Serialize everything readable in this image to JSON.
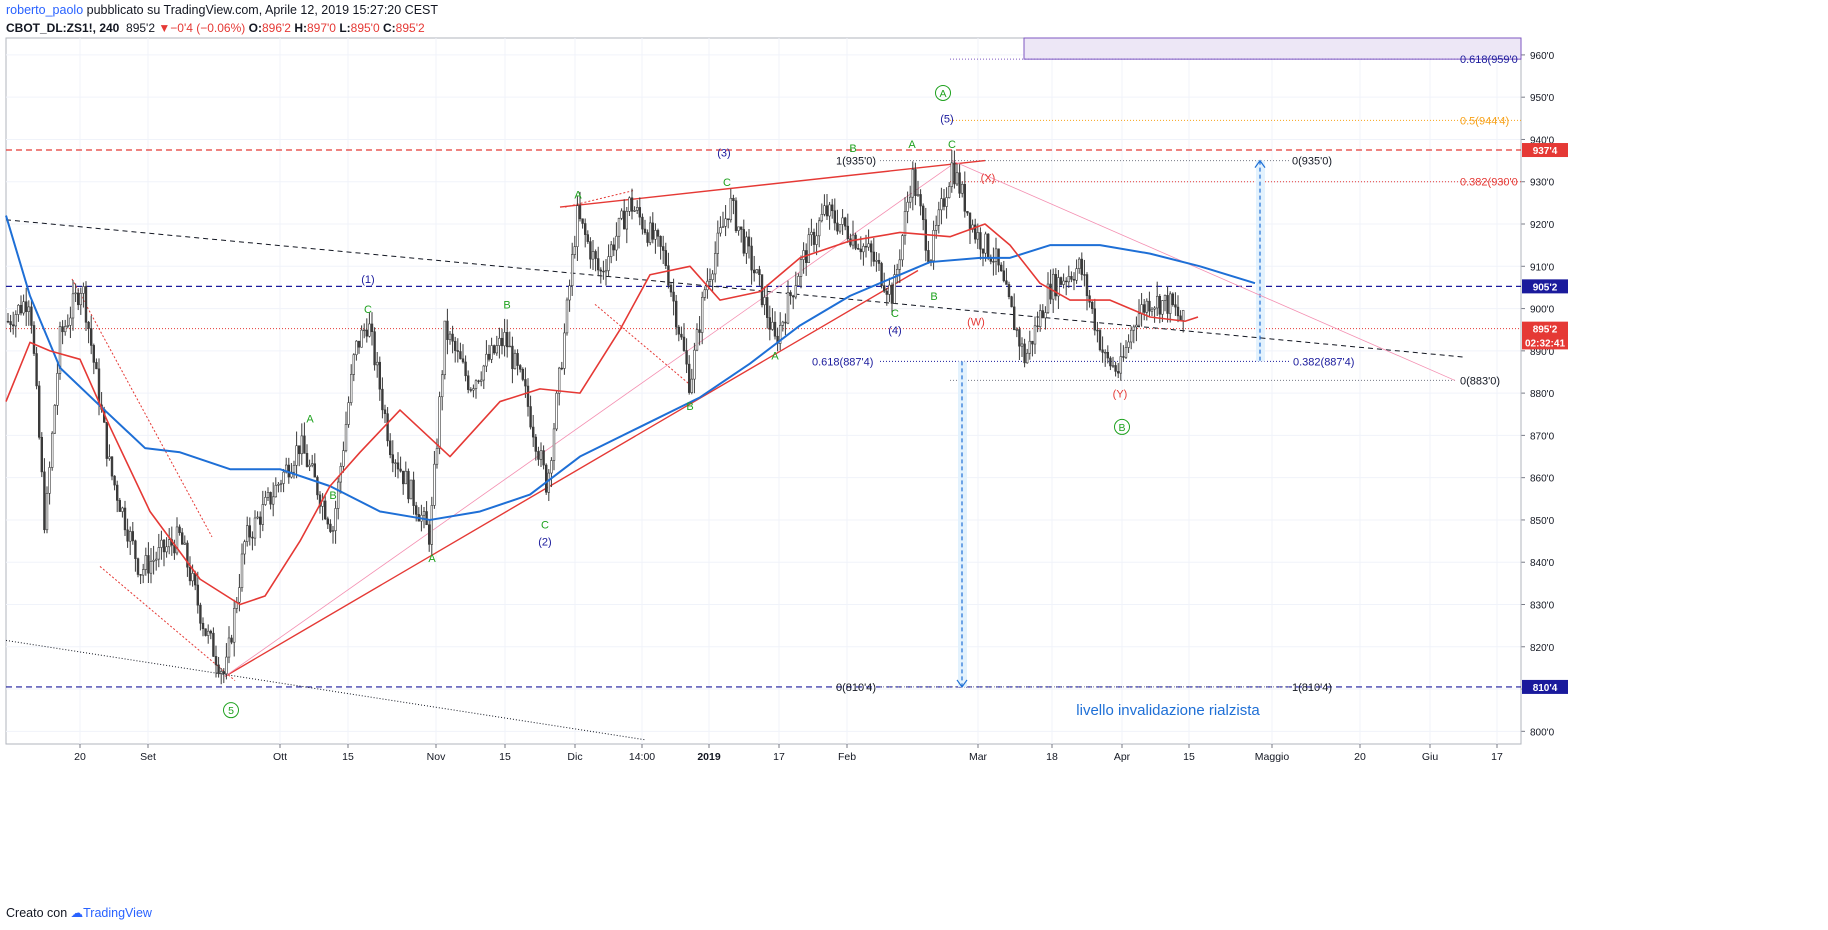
{
  "header": {
    "user": "roberto_paolo",
    "published_text": " pubblicato su TradingView.com, Aprile 12, 2019 15:27:20 CEST",
    "symbol": "CBOT_DL:ZS1!, 240",
    "last": "895'2",
    "change": "−0'4 (−0.06%)",
    "o_label": "O:",
    "o_value": "896'2",
    "h_label": "H:",
    "h_value": "897'0",
    "l_label": "L:",
    "l_value": "895'0",
    "c_label": "C:",
    "c_value": "895'2"
  },
  "footer": {
    "created_with": "Creato con",
    "brand": "TradingView"
  },
  "colors": {
    "bg": "#ffffff",
    "grid": "#f0f3fa",
    "axis": "#787b86",
    "red": "#e53935",
    "blue": "#1e6fd6",
    "navy": "#1a1a9c",
    "green": "#1fa21f",
    "orange": "#f7a21b",
    "purple": "#7e57c2",
    "pink": "#f48fb1",
    "candle": "#3a3a3a"
  },
  "chart_data": {
    "type": "candlestick",
    "y_axis": {
      "ylim": [
        797,
        964
      ],
      "ticks": [
        800,
        810,
        820,
        830,
        840,
        850,
        860,
        870,
        880,
        890,
        900,
        910,
        920,
        930,
        940,
        950,
        960
      ],
      "tick_labels": [
        "800'0",
        "810'0",
        "820'0",
        "830'0",
        "840'0",
        "850'0",
        "860'0",
        "870'0",
        "880'0",
        "890'0",
        "900'0",
        "910'0",
        "920'0",
        "930'0",
        "940'0",
        "950'0",
        "960'0"
      ]
    },
    "x_axis": {
      "labels": [
        "20",
        "Set",
        "Ott",
        "15",
        "Nov",
        "15",
        "Dic",
        "14:00",
        "2019",
        "17",
        "Feb",
        "Mar",
        "18",
        "Apr",
        "15",
        "Maggio",
        "20",
        "Giu",
        "17"
      ],
      "bold": [
        "2019"
      ],
      "t": [
        80,
        148,
        280,
        348,
        436,
        505,
        575,
        642,
        709,
        779,
        847,
        978,
        1052,
        1122,
        1189,
        1272,
        1360,
        1430,
        1497
      ]
    },
    "price_path": [
      {
        "t": 8,
        "p": 897
      },
      {
        "t": 30,
        "p": 903
      },
      {
        "t": 45,
        "p": 848
      },
      {
        "t": 60,
        "p": 893
      },
      {
        "t": 82,
        "p": 906
      },
      {
        "t": 110,
        "p": 862
      },
      {
        "t": 140,
        "p": 838
      },
      {
        "t": 180,
        "p": 846
      },
      {
        "t": 205,
        "p": 824
      },
      {
        "t": 225,
        "p": 813
      },
      {
        "t": 245,
        "p": 845
      },
      {
        "t": 270,
        "p": 855
      },
      {
        "t": 300,
        "p": 868
      },
      {
        "t": 333,
        "p": 848
      },
      {
        "t": 355,
        "p": 890
      },
      {
        "t": 368,
        "p": 897
      },
      {
        "t": 390,
        "p": 868
      },
      {
        "t": 430,
        "p": 846
      },
      {
        "t": 445,
        "p": 895
      },
      {
        "t": 470,
        "p": 882
      },
      {
        "t": 505,
        "p": 893
      },
      {
        "t": 525,
        "p": 880
      },
      {
        "t": 547,
        "p": 858
      },
      {
        "t": 565,
        "p": 895
      },
      {
        "t": 577,
        "p": 922
      },
      {
        "t": 600,
        "p": 908
      },
      {
        "t": 630,
        "p": 925
      },
      {
        "t": 665,
        "p": 912
      },
      {
        "t": 690,
        "p": 882
      },
      {
        "t": 705,
        "p": 905
      },
      {
        "t": 730,
        "p": 925
      },
      {
        "t": 760,
        "p": 905
      },
      {
        "t": 775,
        "p": 892
      },
      {
        "t": 800,
        "p": 910
      },
      {
        "t": 825,
        "p": 923
      },
      {
        "t": 850,
        "p": 918
      },
      {
        "t": 870,
        "p": 913
      },
      {
        "t": 893,
        "p": 903
      },
      {
        "t": 912,
        "p": 932
      },
      {
        "t": 930,
        "p": 912
      },
      {
        "t": 952,
        "p": 934
      },
      {
        "t": 975,
        "p": 918
      },
      {
        "t": 995,
        "p": 912
      },
      {
        "t": 1025,
        "p": 888
      },
      {
        "t": 1050,
        "p": 905
      },
      {
        "t": 1080,
        "p": 910
      },
      {
        "t": 1105,
        "p": 888
      },
      {
        "t": 1120,
        "p": 885
      },
      {
        "t": 1135,
        "p": 898
      },
      {
        "t": 1150,
        "p": 902
      },
      {
        "t": 1170,
        "p": 901
      },
      {
        "t": 1185,
        "p": 896
      }
    ],
    "ma_blue": [
      {
        "t": 6,
        "p": 922
      },
      {
        "t": 30,
        "p": 903
      },
      {
        "t": 60,
        "p": 886
      },
      {
        "t": 100,
        "p": 877
      },
      {
        "t": 145,
        "p": 867
      },
      {
        "t": 180,
        "p": 866
      },
      {
        "t": 230,
        "p": 862
      },
      {
        "t": 280,
        "p": 862
      },
      {
        "t": 330,
        "p": 858
      },
      {
        "t": 380,
        "p": 852
      },
      {
        "t": 430,
        "p": 850
      },
      {
        "t": 480,
        "p": 852
      },
      {
        "t": 530,
        "p": 856
      },
      {
        "t": 580,
        "p": 865
      },
      {
        "t": 640,
        "p": 872
      },
      {
        "t": 700,
        "p": 879
      },
      {
        "t": 750,
        "p": 887
      },
      {
        "t": 800,
        "p": 896
      },
      {
        "t": 850,
        "p": 903
      },
      {
        "t": 890,
        "p": 907
      },
      {
        "t": 930,
        "p": 911
      },
      {
        "t": 980,
        "p": 912
      },
      {
        "t": 1010,
        "p": 912
      },
      {
        "t": 1050,
        "p": 915
      },
      {
        "t": 1100,
        "p": 915
      },
      {
        "t": 1150,
        "p": 913
      },
      {
        "t": 1200,
        "p": 910
      },
      {
        "t": 1255,
        "p": 906
      }
    ],
    "ma_red": [
      {
        "t": 6,
        "p": 878
      },
      {
        "t": 30,
        "p": 892
      },
      {
        "t": 50,
        "p": 890
      },
      {
        "t": 80,
        "p": 888
      },
      {
        "t": 110,
        "p": 872
      },
      {
        "t": 150,
        "p": 852
      },
      {
        "t": 200,
        "p": 836
      },
      {
        "t": 240,
        "p": 830
      },
      {
        "t": 265,
        "p": 832
      },
      {
        "t": 300,
        "p": 845
      },
      {
        "t": 330,
        "p": 858
      },
      {
        "t": 360,
        "p": 866
      },
      {
        "t": 400,
        "p": 876
      },
      {
        "t": 450,
        "p": 865
      },
      {
        "t": 500,
        "p": 878
      },
      {
        "t": 540,
        "p": 881
      },
      {
        "t": 580,
        "p": 880
      },
      {
        "t": 620,
        "p": 895
      },
      {
        "t": 650,
        "p": 908
      },
      {
        "t": 690,
        "p": 910
      },
      {
        "t": 720,
        "p": 902
      },
      {
        "t": 760,
        "p": 904
      },
      {
        "t": 800,
        "p": 912
      },
      {
        "t": 850,
        "p": 916
      },
      {
        "t": 900,
        "p": 918
      },
      {
        "t": 950,
        "p": 917
      },
      {
        "t": 985,
        "p": 920
      },
      {
        "t": 1010,
        "p": 915
      },
      {
        "t": 1040,
        "p": 906
      },
      {
        "t": 1070,
        "p": 902
      },
      {
        "t": 1110,
        "p": 902
      },
      {
        "t": 1150,
        "p": 898
      },
      {
        "t": 1185,
        "p": 897
      },
      {
        "t": 1198,
        "p": 898
      }
    ],
    "price_badges": [
      {
        "value": "937'4",
        "p": 937.5,
        "bg": "#e53935",
        "fg": "#ffffff"
      },
      {
        "value": "905'2",
        "p": 905.25,
        "bg": "#1a1a9c",
        "fg": "#ffffff"
      },
      {
        "value": "895'2",
        "p": 895.25,
        "bg": "#e53935",
        "fg": "#ffffff"
      },
      {
        "value": "02:32:41",
        "p": 892.0,
        "bg": "#e53935",
        "fg": "#ffffff"
      },
      {
        "value": "810'4",
        "p": 810.5,
        "bg": "#1a1a9c",
        "fg": "#ffffff"
      }
    ],
    "fib_labels": [
      {
        "text": "0.618(959'0",
        "t": 1460,
        "p": 959,
        "color": "#1a1a9c"
      },
      {
        "text": "0.5(944'4)",
        "t": 1460,
        "p": 944.5,
        "color": "#f7a21b"
      },
      {
        "text": "0.382(930'0",
        "t": 1460,
        "p": 930,
        "color": "#e53935"
      },
      {
        "text": "1(935'0)",
        "t": 836,
        "p": 935,
        "color": "#131722"
      },
      {
        "text": "0(935'0)",
        "t": 1292,
        "p": 935,
        "color": "#131722"
      },
      {
        "text": "0.618(887'4)",
        "t": 812,
        "p": 887.5,
        "color": "#1a1a9c"
      },
      {
        "text": "0.382(887'4)",
        "t": 1293,
        "p": 887.5,
        "color": "#1a1a9c"
      },
      {
        "text": "0(883'0)",
        "t": 1460,
        "p": 883,
        "color": "#131722"
      },
      {
        "text": "0(810'4)",
        "t": 836,
        "p": 810.5,
        "color": "#131722"
      },
      {
        "text": "1(810'4)",
        "t": 1292,
        "p": 810.5,
        "color": "#131722"
      }
    ],
    "wave_labels": [
      {
        "text": "A",
        "t": 310,
        "p": 873,
        "color": "#1fa21f"
      },
      {
        "text": "B",
        "t": 333,
        "p": 855,
        "color": "#1fa21f"
      },
      {
        "text": "C",
        "t": 368,
        "p": 899,
        "color": "#1fa21f"
      },
      {
        "text": "(1)",
        "t": 368,
        "p": 906,
        "color": "#1a1a9c"
      },
      {
        "text": "A",
        "t": 432,
        "p": 840,
        "color": "#1fa21f"
      },
      {
        "text": "B",
        "t": 507,
        "p": 900,
        "color": "#1fa21f"
      },
      {
        "text": "C",
        "t": 545,
        "p": 848,
        "color": "#1fa21f"
      },
      {
        "text": "(2)",
        "t": 545,
        "p": 844,
        "color": "#1a1a9c"
      },
      {
        "text": "A",
        "t": 578,
        "p": 926,
        "color": "#1fa21f"
      },
      {
        "text": "B",
        "t": 690,
        "p": 876,
        "color": "#1fa21f"
      },
      {
        "text": "C",
        "t": 727,
        "p": 929,
        "color": "#1fa21f"
      },
      {
        "text": "(3)",
        "t": 724,
        "p": 936,
        "color": "#1a1a9c"
      },
      {
        "text": "A",
        "t": 775,
        "p": 888,
        "color": "#1fa21f"
      },
      {
        "text": "B",
        "t": 853,
        "p": 937,
        "color": "#1fa21f"
      },
      {
        "text": "C",
        "t": 895,
        "p": 898,
        "color": "#1fa21f"
      },
      {
        "text": "(4)",
        "t": 895,
        "p": 894,
        "color": "#1a1a9c"
      },
      {
        "text": "A",
        "t": 912,
        "p": 938,
        "color": "#1fa21f"
      },
      {
        "text": "B",
        "t": 934,
        "p": 902,
        "color": "#1fa21f"
      },
      {
        "text": "C",
        "t": 952,
        "p": 938,
        "color": "#1fa21f"
      },
      {
        "text": "(5)",
        "t": 947,
        "p": 944,
        "color": "#1a1a9c"
      },
      {
        "text": "(X)",
        "t": 988,
        "p": 930,
        "color": "#e53935"
      },
      {
        "text": "(W)",
        "t": 976,
        "p": 896,
        "color": "#e53935"
      },
      {
        "text": "(Y)",
        "t": 1120,
        "p": 879,
        "color": "#e53935"
      }
    ],
    "circled_labels": [
      {
        "text": "A",
        "t": 943,
        "p": 951,
        "color": "#1fa21f"
      },
      {
        "text": "B",
        "t": 1122,
        "p": 872,
        "color": "#1fa21f"
      },
      {
        "text": "5",
        "t": 231,
        "p": 805,
        "color": "#1fa21f"
      }
    ],
    "annotation": {
      "text": "livello invalidazione rialzista",
      "t": 1168,
      "p": 805,
      "color": "#1e6fd6"
    }
  }
}
